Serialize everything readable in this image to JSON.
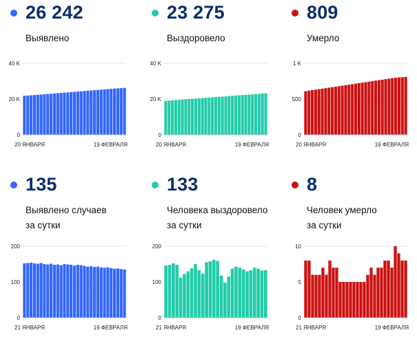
{
  "colors": {
    "blue": "#3366ff",
    "green": "#22ccaa",
    "red": "#cc1111"
  },
  "panels": [
    {
      "value": "26 242",
      "label_lines": [
        "Выявлено"
      ],
      "color_key": "blue",
      "chart_data": {
        "type": "bar",
        "x_start_label": "20 ЯНВАРЯ",
        "x_end_label": "19 ФЕВРАЛЯ",
        "yticks": [
          {
            "v": 0,
            "t": "0"
          },
          {
            "v": 20000,
            "t": "20 K"
          },
          {
            "v": 40000,
            "t": "40 K"
          }
        ],
        "ylim": [
          0,
          40000
        ],
        "values": [
          21800,
          21950,
          22100,
          22250,
          22400,
          22550,
          22700,
          22850,
          23000,
          23150,
          23300,
          23450,
          23600,
          23750,
          23900,
          24050,
          24200,
          24350,
          24500,
          24650,
          24800,
          24950,
          25100,
          25250,
          25400,
          25550,
          25700,
          25850,
          26000,
          26107,
          26242
        ]
      }
    },
    {
      "value": "23 275",
      "label_lines": [
        "Выздоровело"
      ],
      "color_key": "green",
      "chart_data": {
        "type": "bar",
        "x_start_label": "20 ЯНВАРЯ",
        "x_end_label": "19 ФЕВРАЛЯ",
        "yticks": [
          {
            "v": 0,
            "t": "0"
          },
          {
            "v": 20000,
            "t": "20 K"
          },
          {
            "v": 40000,
            "t": "40 K"
          }
        ],
        "ylim": [
          0,
          40000
        ],
        "values": [
          19000,
          19140,
          19280,
          19420,
          19560,
          19700,
          19840,
          19980,
          20120,
          20260,
          20400,
          20540,
          20680,
          20820,
          20960,
          21100,
          21240,
          21380,
          21520,
          21660,
          21800,
          21940,
          22080,
          22220,
          22360,
          22500,
          22640,
          22780,
          22920,
          23142,
          23275
        ]
      }
    },
    {
      "value": "809",
      "label_lines": [
        "Умерло"
      ],
      "color_key": "red",
      "chart_data": {
        "type": "bar",
        "x_start_label": "20 ЯНВАРЯ",
        "x_end_label": "19 ФЕВРАЛЯ",
        "yticks": [
          {
            "v": 0,
            "t": "0"
          },
          {
            "v": 500,
            "t": "500"
          },
          {
            "v": 1000,
            "t": "1 K"
          }
        ],
        "ylim": [
          0,
          1000
        ],
        "values": [
          610,
          617,
          624,
          631,
          638,
          645,
          652,
          659,
          666,
          673,
          680,
          687,
          694,
          701,
          708,
          715,
          722,
          729,
          736,
          743,
          750,
          757,
          764,
          771,
          778,
          785,
          792,
          798,
          801,
          804,
          809
        ]
      }
    },
    {
      "value": "135",
      "label_lines": [
        "Выявлено случаев",
        "за сутки"
      ],
      "color_key": "blue",
      "chart_data": {
        "type": "bar",
        "x_start_label": "21 ЯНВАРЯ",
        "x_end_label": "19 ФЕВРАЛЯ",
        "yticks": [
          {
            "v": 0,
            "t": "0"
          },
          {
            "v": 100,
            "t": "100"
          },
          {
            "v": 200,
            "t": "200"
          }
        ],
        "ylim": [
          0,
          200
        ],
        "values": [
          152,
          153,
          154,
          152,
          151,
          153,
          150,
          149,
          151,
          148,
          149,
          147,
          150,
          149,
          148,
          146,
          148,
          147,
          145,
          143,
          144,
          142,
          143,
          141,
          140,
          141,
          139,
          137,
          138,
          136,
          135
        ]
      }
    },
    {
      "value": "133",
      "label_lines": [
        "Человека выздоровело",
        "за сутки"
      ],
      "color_key": "green",
      "chart_data": {
        "type": "bar",
        "x_start_label": "21 ЯНВАРЯ",
        "x_end_label": "19 ФЕВРАЛЯ",
        "yticks": [
          {
            "v": 0,
            "t": "0"
          },
          {
            "v": 100,
            "t": "100"
          },
          {
            "v": 200,
            "t": "200"
          }
        ],
        "ylim": [
          0,
          200
        ],
        "values": [
          146,
          148,
          152,
          148,
          112,
          122,
          130,
          138,
          150,
          133,
          123,
          155,
          158,
          162,
          159,
          118,
          98,
          115,
          137,
          143,
          140,
          135,
          130,
          133,
          140,
          137,
          132,
          133
        ]
      }
    },
    {
      "value": "8",
      "label_lines": [
        "Человек умерло",
        "за сутки"
      ],
      "color_key": "red",
      "chart_data": {
        "type": "bar",
        "x_start_label": "21 ЯНВАРЯ",
        "x_end_label": "19 ФЕВРАЛЯ",
        "yticks": [
          {
            "v": 0,
            "t": "0"
          },
          {
            "v": 5,
            "t": "5"
          },
          {
            "v": 10,
            "t": "10"
          }
        ],
        "ylim": [
          0,
          10
        ],
        "values": [
          8,
          8,
          6,
          6,
          6,
          7,
          6,
          8,
          7,
          7,
          5,
          5,
          5,
          5,
          5,
          5,
          5,
          5,
          6,
          7,
          6,
          7,
          7,
          8,
          8,
          7,
          10,
          9,
          8,
          8
        ]
      }
    }
  ]
}
